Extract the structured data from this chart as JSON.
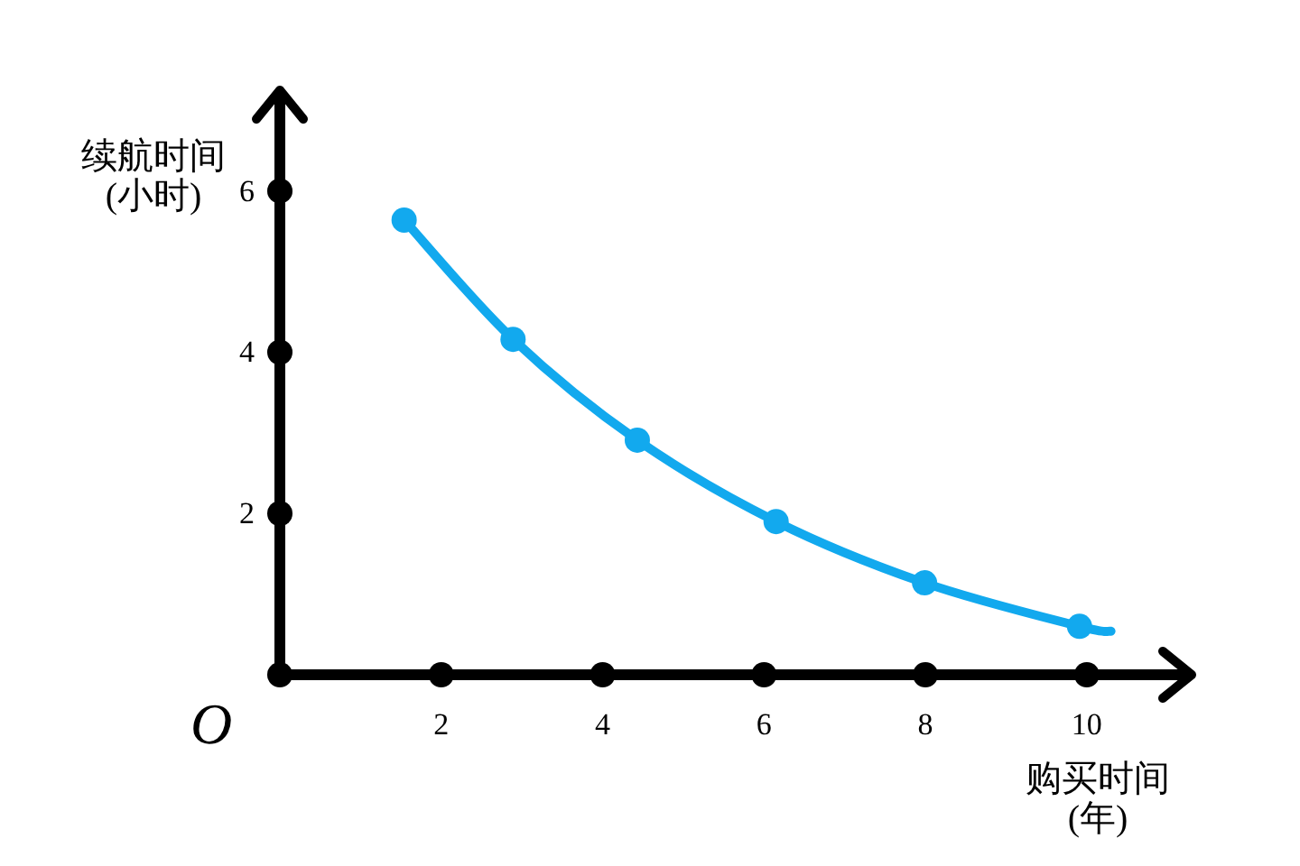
{
  "chart_data": {
    "type": "line",
    "xlabel": "购买时间\n(年)",
    "ylabel": "续航时间\n(小时)",
    "xlim": [
      0,
      11.3
    ],
    "ylim": [
      0,
      7.25
    ],
    "xticks": [
      2,
      4,
      6,
      8,
      10
    ],
    "yticks": [
      2,
      4,
      6
    ],
    "grid": false,
    "legend": false,
    "annotations": [
      {
        "text": "O",
        "x": 0,
        "y": 0
      }
    ],
    "series": [
      {
        "type": "line",
        "color": "#12a9ee",
        "marker": "none",
        "line_style": "solid",
        "x": [
          1.54,
          2.89,
          4.43,
          6.15,
          7.99,
          9.91,
          10.3
        ],
        "values": [
          5.64,
          4.16,
          2.91,
          1.9,
          1.14,
          0.6,
          0.54
        ]
      },
      {
        "type": "scatter",
        "color": "#12a9ee",
        "marker": "circle",
        "x": [
          1.54,
          2.89,
          4.43,
          6.15,
          7.99,
          9.91
        ],
        "values": [
          5.64,
          4.16,
          2.91,
          1.9,
          1.14,
          0.6
        ]
      }
    ]
  }
}
